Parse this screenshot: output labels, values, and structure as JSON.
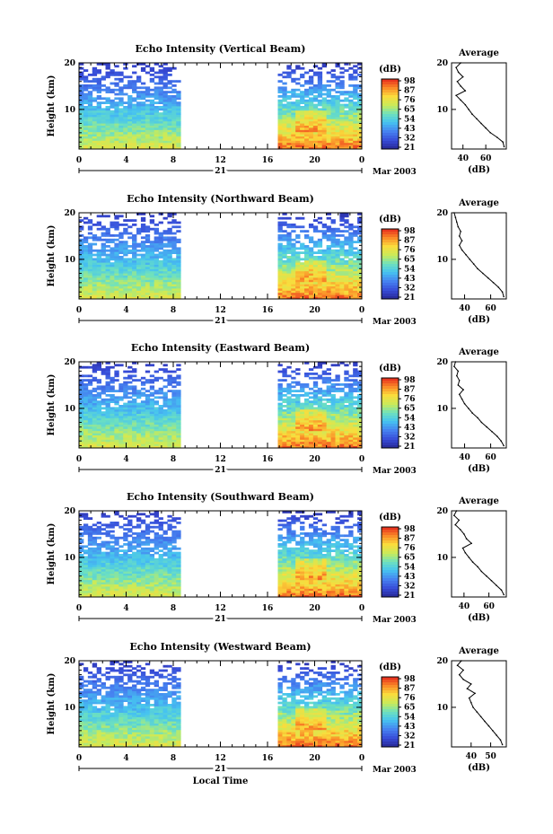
{
  "chart_data": [
    {
      "type": "heatmap",
      "title": "Echo Intensity (Vertical Beam)",
      "ylabel": "Height (km)",
      "y_ticks": [
        "20",
        "10"
      ],
      "x_ticks": [
        "0",
        "4",
        "8",
        "12",
        "16",
        "20",
        "0"
      ],
      "date_day": "21",
      "date_suffix": "Mar 2003",
      "xlim": [
        0,
        24
      ],
      "ylim": [
        1.5,
        20
      ],
      "data_gaps_hours": [
        [
          8.5,
          16.8
        ],
        [
          21.6,
          21.9
        ]
      ],
      "colorbar": {
        "unit": "(dB)",
        "ticks": [
          "98",
          "87",
          "76",
          "65",
          "54",
          "43",
          "32",
          "21"
        ],
        "range": [
          21,
          98
        ]
      },
      "avg_profile": {
        "title": "Average",
        "xlabel": "(dB)",
        "x_ticks": [
          "40",
          "60"
        ],
        "y_ticks": [
          "20",
          "10"
        ],
        "xlim": [
          30,
          78
        ],
        "ylim": [
          1.5,
          20
        ],
        "height": [
          2,
          3,
          4,
          5,
          6,
          7,
          8,
          9,
          10,
          11,
          12,
          13,
          14,
          15,
          16,
          17,
          18,
          19,
          20
        ],
        "value": [
          76,
          75,
          70,
          64,
          60,
          56,
          52,
          48,
          45,
          42,
          38,
          34,
          42,
          38,
          35,
          40,
          36,
          34,
          38
        ]
      }
    },
    {
      "type": "heatmap",
      "title": "Echo Intensity (Northward Beam)",
      "ylabel": "Height (km)",
      "y_ticks": [
        "20",
        "10"
      ],
      "x_ticks": [
        "0",
        "4",
        "8",
        "12",
        "16",
        "20",
        "0"
      ],
      "date_day": "21",
      "date_suffix": "Mar 2003",
      "xlim": [
        0,
        24
      ],
      "ylim": [
        1.5,
        20
      ],
      "data_gaps_hours": [
        [
          8.5,
          16.8
        ],
        [
          21.6,
          21.9
        ]
      ],
      "colorbar": {
        "unit": "(dB)",
        "ticks": [
          "98",
          "87",
          "76",
          "65",
          "54",
          "43",
          "32",
          "21"
        ],
        "range": [
          21,
          98
        ]
      },
      "avg_profile": {
        "title": "Average",
        "xlabel": "(dB)",
        "x_ticks": [
          "40",
          "60"
        ],
        "y_ticks": [
          "20",
          "10"
        ],
        "xlim": [
          30,
          72
        ],
        "ylim": [
          1.5,
          20
        ],
        "height": [
          2,
          3,
          4,
          5,
          6,
          7,
          8,
          9,
          10,
          11,
          12,
          13,
          14,
          15,
          16,
          17,
          18,
          19,
          20
        ],
        "value": [
          70,
          69,
          66,
          62,
          58,
          54,
          50,
          47,
          44,
          41,
          38,
          36,
          38,
          36,
          37,
          35,
          34,
          33,
          32
        ]
      }
    },
    {
      "type": "heatmap",
      "title": "Echo Intensity (Eastward Beam)",
      "ylabel": "Height (km)",
      "y_ticks": [
        "20",
        "10"
      ],
      "x_ticks": [
        "0",
        "4",
        "8",
        "12",
        "16",
        "20",
        "0"
      ],
      "date_day": "21",
      "date_suffix": "Mar 2003",
      "xlim": [
        0,
        24
      ],
      "ylim": [
        1.5,
        20
      ],
      "data_gaps_hours": [
        [
          8.5,
          16.8
        ],
        [
          21.6,
          21.9
        ]
      ],
      "colorbar": {
        "unit": "(dB)",
        "ticks": [
          "98",
          "87",
          "76",
          "65",
          "54",
          "43",
          "32",
          "21"
        ],
        "range": [
          21,
          98
        ]
      },
      "avg_profile": {
        "title": "Average",
        "xlabel": "(dB)",
        "x_ticks": [
          "40",
          "60"
        ],
        "y_ticks": [
          "20",
          "10"
        ],
        "xlim": [
          30,
          72
        ],
        "ylim": [
          1.5,
          20
        ],
        "height": [
          2,
          3,
          4,
          5,
          6,
          7,
          8,
          9,
          10,
          11,
          12,
          13,
          14,
          15,
          16,
          17,
          18,
          19,
          20
        ],
        "value": [
          70,
          68,
          65,
          61,
          57,
          53,
          50,
          46,
          43,
          40,
          38,
          36,
          39,
          35,
          36,
          34,
          35,
          32,
          33
        ]
      }
    },
    {
      "type": "heatmap",
      "title": "Echo Intensity (Southward Beam)",
      "ylabel": "Height (km)",
      "y_ticks": [
        "20",
        "10"
      ],
      "x_ticks": [
        "0",
        "4",
        "8",
        "12",
        "16",
        "20",
        "0"
      ],
      "date_day": "21",
      "date_suffix": "Mar 2003",
      "xlim": [
        0,
        24
      ],
      "ylim": [
        1.5,
        20
      ],
      "data_gaps_hours": [
        [
          8.5,
          16.8
        ],
        [
          21.6,
          21.9
        ]
      ],
      "colorbar": {
        "unit": "(dB)",
        "ticks": [
          "98",
          "87",
          "76",
          "65",
          "54",
          "43",
          "32",
          "21"
        ],
        "range": [
          21,
          98
        ]
      },
      "avg_profile": {
        "title": "Average",
        "xlabel": "(dB)",
        "x_ticks": [
          "40",
          "60"
        ],
        "y_ticks": [
          "20",
          "10"
        ],
        "xlim": [
          30,
          74
        ],
        "ylim": [
          1.5,
          20
        ],
        "height": [
          2,
          3,
          4,
          5,
          6,
          7,
          8,
          9,
          10,
          11,
          12,
          13,
          14,
          15,
          16,
          17,
          18,
          19,
          20
        ],
        "value": [
          72,
          70,
          66,
          62,
          58,
          54,
          51,
          47,
          44,
          41,
          39,
          46,
          42,
          40,
          37,
          33,
          36,
          32,
          34
        ]
      }
    },
    {
      "type": "heatmap",
      "title": "Echo Intensity (Westward Beam)",
      "ylabel": "Height (km)",
      "y_ticks": [
        "20",
        "10"
      ],
      "x_ticks": [
        "0",
        "4",
        "8",
        "12",
        "16",
        "20",
        "0"
      ],
      "date_day": "21",
      "date_suffix": "Mar 2003",
      "xlabel": "Local Time",
      "xlim": [
        0,
        24
      ],
      "ylim": [
        1.5,
        20
      ],
      "data_gaps_hours": [
        [
          8.5,
          16.8
        ],
        [
          21.6,
          21.9
        ]
      ],
      "colorbar": {
        "unit": "(dB)",
        "ticks": [
          "98",
          "87",
          "76",
          "65",
          "54",
          "43",
          "32",
          "21"
        ],
        "range": [
          21,
          98
        ]
      },
      "avg_profile": {
        "title": "Average",
        "xlabel": "(dB)",
        "x_ticks": [
          "40",
          "50"
        ],
        "y_ticks": [
          "20",
          "10"
        ],
        "xlim": [
          30,
          58
        ],
        "ylim": [
          1.5,
          20
        ],
        "height": [
          2,
          3,
          4,
          5,
          6,
          7,
          8,
          9,
          10,
          11,
          12,
          13,
          14,
          15,
          16,
          17,
          18,
          19,
          20
        ],
        "value": [
          56,
          55,
          53,
          51,
          49,
          47,
          45,
          43,
          41,
          40,
          39,
          42,
          38,
          40,
          36,
          34,
          36,
          33,
          35
        ]
      }
    }
  ]
}
